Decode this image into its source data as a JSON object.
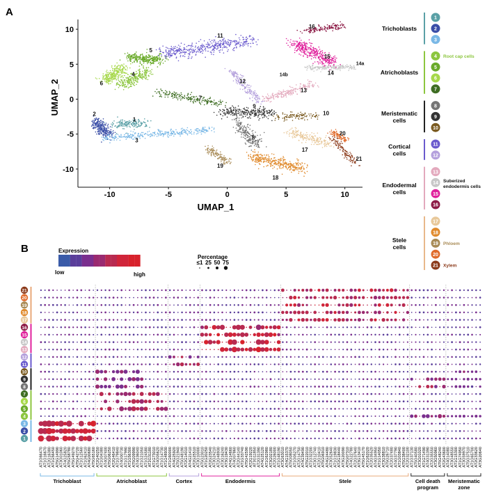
{
  "panel_a": {
    "letter": "A",
    "xlabel": "UMAP_1",
    "ylabel": "UMAP_2",
    "xticks": [
      "-10",
      "-5",
      "0",
      "5",
      "10"
    ],
    "yticks": [
      "10",
      "5",
      "0",
      "-5",
      "-10"
    ],
    "xlim": [
      -12.7,
      11.5
    ],
    "ylim": [
      -12.6,
      11.4
    ],
    "clusters": [
      {
        "id": "1",
        "color": "#5aa0a6",
        "label_xy": [
          -7.9,
          -3.2
        ]
      },
      {
        "id": "2",
        "color": "#3a4ea7",
        "label_xy": [
          -11.3,
          -2.4
        ]
      },
      {
        "id": "3",
        "color": "#7ab8e6",
        "label_xy": [
          -7.7,
          -6.2
        ]
      },
      {
        "id": "4",
        "color": "#8cc63f",
        "label_xy": [
          -8.0,
          3.3
        ]
      },
      {
        "id": "5",
        "color": "#6aaa2a",
        "label_xy": [
          -6.5,
          6.7
        ]
      },
      {
        "id": "6",
        "color": "#a6d84a",
        "label_xy": [
          -10.7,
          2.0
        ]
      },
      {
        "id": "7",
        "color": "#3e6d23",
        "label_xy": [
          -2.3,
          -0.1
        ]
      },
      {
        "id": "8",
        "color": "#757575",
        "label_xy": [
          2.2,
          -5.8
        ]
      },
      {
        "id": "9",
        "color": "#333333",
        "label_xy": [
          2.3,
          -1.3
        ]
      },
      {
        "id": "10",
        "color": "#7a5a20",
        "label_xy": [
          8.4,
          -2.3
        ]
      },
      {
        "id": "11",
        "color": "#6a5acd",
        "label_xy": [
          -0.6,
          8.8
        ]
      },
      {
        "id": "12",
        "color": "#b4a0dc",
        "label_xy": [
          1.3,
          2.3
        ]
      },
      {
        "id": "13",
        "color": "#e3a9bd",
        "label_xy": [
          6.5,
          1.0
        ]
      },
      {
        "id": "14",
        "color": "#c7c7c7",
        "label_xy": [
          8.8,
          3.5
        ]
      },
      {
        "id": "15",
        "color": "#e0219c",
        "label_xy": [
          8.5,
          5.8
        ]
      },
      {
        "id": "16",
        "color": "#8c1a45",
        "label_xy": [
          7.2,
          10.1
        ]
      },
      {
        "id": "17",
        "color": "#e8c89a",
        "label_xy": [
          6.6,
          -7.5
        ]
      },
      {
        "id": "18",
        "color": "#e08a2c",
        "label_xy": [
          4.1,
          -11.5
        ]
      },
      {
        "id": "19",
        "color": "#a88a55",
        "label_xy": [
          -0.6,
          -9.8
        ]
      },
      {
        "id": "20",
        "color": "#e06a2a",
        "label_xy": [
          9.8,
          -5.2
        ]
      },
      {
        "id": "21",
        "color": "#8b3a1a",
        "label_xy": [
          11.2,
          -8.8
        ]
      }
    ],
    "extra_labels": [
      {
        "text": "14a",
        "xy": [
          11.3,
          4.9
        ]
      },
      {
        "text": "14b",
        "xy": [
          4.8,
          3.3
        ]
      }
    ],
    "legend": [
      {
        "group": "Trichoblasts",
        "bar": "#5aa0a6",
        "items": [
          {
            "id": "1",
            "color": "#5aa0a6",
            "note": ""
          },
          {
            "id": "2",
            "color": "#3a4ea7",
            "note": ""
          },
          {
            "id": "3",
            "color": "#7ab8e6",
            "note": ""
          }
        ]
      },
      {
        "group": "Atrichoblasts",
        "bar": "#8cc63f",
        "items": [
          {
            "id": "4",
            "color": "#8cc63f",
            "note": "Root cap cells",
            "note_color": "#8cc63f"
          },
          {
            "id": "5",
            "color": "#6aaa2a",
            "note": ""
          },
          {
            "id": "6",
            "color": "#a6d84a",
            "note": ""
          },
          {
            "id": "7",
            "color": "#3e6d23",
            "note": ""
          }
        ]
      },
      {
        "group": "Meristematic cells",
        "bar": "#222222",
        "items": [
          {
            "id": "8",
            "color": "#757575",
            "note": ""
          },
          {
            "id": "9",
            "color": "#333333",
            "note": ""
          },
          {
            "id": "10",
            "color": "#7a5a20",
            "note": ""
          }
        ]
      },
      {
        "group": "Cortical cells",
        "bar": "#6a5acd",
        "items": [
          {
            "id": "11",
            "color": "#6a5acd",
            "note": ""
          },
          {
            "id": "12",
            "color": "#b4a0dc",
            "note": ""
          }
        ]
      },
      {
        "group": "Endodermal cells",
        "bar": "#e3a9bd",
        "items": [
          {
            "id": "13",
            "color": "#e3a9bd",
            "note": ""
          },
          {
            "id": "14",
            "color": "#c7c7c7",
            "note": "Suberized endodermis cells",
            "note_color": "#111111"
          },
          {
            "id": "15",
            "color": "#e0219c",
            "note": ""
          },
          {
            "id": "16",
            "color": "#8c1a45",
            "note": ""
          }
        ]
      },
      {
        "group": "Stele cells",
        "bar": "#e8b88a",
        "items": [
          {
            "id": "17",
            "color": "#e8c89a",
            "note": ""
          },
          {
            "id": "18",
            "color": "#e08a2c",
            "note": ""
          },
          {
            "id": "19",
            "color": "#a88a55",
            "note": "Phloem",
            "note_color": "#a88a55"
          },
          {
            "id": "20",
            "color": "#e06a2a",
            "note": ""
          },
          {
            "id": "21",
            "color": "#8b3a1a",
            "note": "Xylem",
            "note_color": "#8b3a1a"
          }
        ]
      }
    ]
  },
  "panel_b": {
    "letter": "B",
    "expression_title": "Expression",
    "expression_low": "low",
    "expression_high": "high",
    "percentage_title": "Percentage",
    "percentage_ticks": [
      "≤1",
      "25",
      "50",
      "75"
    ],
    "genes": [
      "AT1G66470",
      "AT1G16670",
      "AT2G16380",
      "AT1G56450",
      "AT5G14990",
      "AT3G01060",
      "AT4G25820",
      "AT5G58780",
      "AT5G49270",
      "AT5G42720",
      "AT1G12560",
      "AT1G62410",
      "AT4G00680",
      "AT5G65160",
      "AT2G40250",
      "AT1G04380",
      "AT4G07400",
      "AT5G06250",
      "AT2G46410",
      "AT1G79840",
      "AT4G00730",
      "AT1G17990",
      "AT1G56300",
      "AT5G09990",
      "AT4G36040",
      "AT1G21050",
      "AT1G24580",
      "AT2G31180",
      "AT1G73010",
      "AT4G05620",
      "AT1G14730",
      "AT1G48930",
      "AT1G60000",
      "AT4G25920",
      "AT5G21940",
      "AT5G48190",
      "AT2G14010",
      "AT4G21410",
      "AT2G25510",
      "AT3G10000",
      "AT5G23010",
      "AT1G20250",
      "AT2G23540",
      "AT3G24210",
      "AT2G48930",
      "AT3G16240",
      "AT3G19430",
      "AT4G14660",
      "AT4G07860",
      "AT2G44140",
      "AT1G33740",
      "AT5G42590",
      "AT2G19220",
      "AT3G11850",
      "AT2G31390",
      "AT4G25120",
      "AT1G62980",
      "AT3G02180",
      "AT2G26000",
      "AT1G48190",
      "AT3G63010",
      "AT4G15370",
      "AT5G08050",
      "AT1G05270",
      "AT2G14750",
      "AT4G39490",
      "AT5G22010",
      "AT1G32200",
      "AT3G12740",
      "AT2G10410",
      "AT5G06910",
      "AT4G24480",
      "AT3G52640",
      "AT1G19830",
      "AT2G18440",
      "AT3G20090",
      "AT5G07310",
      "AT4G22780",
      "AT2G37640",
      "AT3G13410",
      "AT5G45170",
      "AT1G62020",
      "AT2G35520",
      "AT4G34950",
      "AT1G14050",
      "AT3G38810",
      "AT5G26710",
      "AT2G37480",
      "AT4G37790",
      "AT1G03840",
      "AT5G38400",
      "AT2G32100",
      "AT1G37130",
      "AT5G40580",
      "AT3G01020",
      "AT1G71490",
      "AT4G31390",
      "AT2G35550",
      "AT3G50960",
      "AT5G48240",
      "AT2G43600",
      "AT4G14080",
      "AT3G48550",
      "AT1G15300",
      "AT1G74950",
      "AT3G59970",
      "AT5G37510",
      "AT1G65700",
      "AT2G33620",
      "AT3G20640"
    ],
    "groups": [
      {
        "name": "Trichoblast",
        "color": "#7ab8e6"
      },
      {
        "name": "Atrichoblast",
        "color": "#8cc63f"
      },
      {
        "name": "Cortex",
        "color": "#b4a0dc"
      },
      {
        "name": "Endodermis",
        "color": "#e0219c"
      },
      {
        "name": "Stele",
        "color": "#e8a87a"
      },
      {
        "name": "Cell death program",
        "color": "#222222"
      },
      {
        "name": "Meristematic zone",
        "color": "#222222"
      }
    ],
    "group_spans": [
      [
        0,
        14
      ],
      [
        14,
        32
      ],
      [
        32,
        40
      ],
      [
        40,
        60
      ],
      [
        60,
        92
      ],
      [
        92,
        101
      ],
      [
        101,
        110
      ]
    ],
    "rows": [
      {
        "id": "21",
        "color": "#8b3a1a"
      },
      {
        "id": "20",
        "color": "#e06a2a"
      },
      {
        "id": "19",
        "color": "#a88a55"
      },
      {
        "id": "18",
        "color": "#e08a2c"
      },
      {
        "id": "17",
        "color": "#e8c89a"
      },
      {
        "id": "16",
        "color": "#8c1a45"
      },
      {
        "id": "15",
        "color": "#e0219c"
      },
      {
        "id": "14",
        "color": "#c7c7c7"
      },
      {
        "id": "13",
        "color": "#e3a9bd"
      },
      {
        "id": "12",
        "color": "#b4a0dc"
      },
      {
        "id": "11",
        "color": "#6a5acd"
      },
      {
        "id": "10",
        "color": "#7a5a20"
      },
      {
        "id": "9",
        "color": "#333333"
      },
      {
        "id": "8",
        "color": "#757575"
      },
      {
        "id": "7",
        "color": "#3e6d23"
      },
      {
        "id": "6",
        "color": "#a6d84a"
      },
      {
        "id": "5",
        "color": "#6aaa2a"
      },
      {
        "id": "4",
        "color": "#8cc63f"
      },
      {
        "id": "3",
        "color": "#7ab8e6"
      },
      {
        "id": "2",
        "color": "#3a4ea7"
      },
      {
        "id": "1",
        "color": "#5aa0a6"
      }
    ],
    "row_bars": [
      {
        "from": "21",
        "to": "17",
        "color": "#e8a87a"
      },
      {
        "from": "16",
        "to": "13",
        "color": "#e0219c"
      },
      {
        "from": "12",
        "to": "11",
        "color": "#6a5acd"
      },
      {
        "from": "10",
        "to": "8",
        "color": "#222222"
      },
      {
        "from": "7",
        "to": "4",
        "color": "#8cc63f"
      },
      {
        "from": "3",
        "to": "1",
        "color": "#7ab8e6"
      }
    ],
    "hot_blocks": [
      {
        "rows": [
          "1",
          "2",
          "3"
        ],
        "cols": [
          0,
          14
        ],
        "pct": 60,
        "expr": 0.8
      },
      {
        "rows": [
          "5",
          "6",
          "7"
        ],
        "cols": [
          14,
          32
        ],
        "pct": 35,
        "expr": 0.6
      },
      {
        "rows": [
          "8",
          "9",
          "10"
        ],
        "cols": [
          14,
          26
        ],
        "pct": 25,
        "expr": 0.45
      },
      {
        "rows": [
          "11",
          "12"
        ],
        "cols": [
          32,
          40
        ],
        "pct": 20,
        "expr": 0.55
      },
      {
        "rows": [
          "13",
          "14",
          "15",
          "16"
        ],
        "cols": [
          40,
          60
        ],
        "pct": 45,
        "expr": 0.8
      },
      {
        "rows": [
          "17",
          "18",
          "19",
          "20",
          "21"
        ],
        "cols": [
          60,
          92
        ],
        "pct": 18,
        "expr": 0.7
      },
      {
        "rows": [
          "4",
          "8",
          "9"
        ],
        "cols": [
          92,
          101
        ],
        "pct": 22,
        "expr": 0.5
      },
      {
        "rows": [
          "4",
          "8",
          "9",
          "10"
        ],
        "cols": [
          101,
          110
        ],
        "pct": 10,
        "expr": 0.35
      }
    ]
  }
}
